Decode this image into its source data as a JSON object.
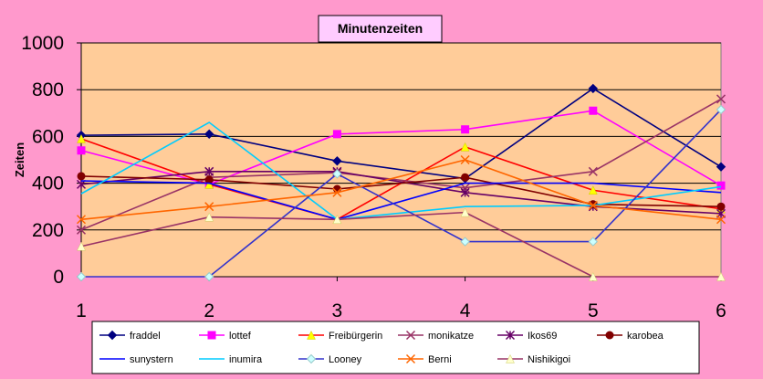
{
  "chart_data": {
    "type": "line",
    "title": "Minutenzeiten",
    "xlabel": "",
    "ylabel": "Zeiten",
    "x": [
      1,
      2,
      3,
      4,
      5,
      6
    ],
    "ylim": [
      0,
      1000
    ],
    "yticks": [
      0,
      200,
      400,
      600,
      800,
      1000
    ],
    "grid": "horizontal",
    "legend_position": "bottom",
    "colors": {
      "page_background": "#ff99cc",
      "plot_background": "#ffcc99",
      "title_background": "#ffccff"
    },
    "series": [
      {
        "name": "fraddel",
        "color": "#000080",
        "marker": "diamond",
        "values": [
          605,
          610,
          495,
          420,
          805,
          470
        ]
      },
      {
        "name": "lottef",
        "color": "#ff00ff",
        "marker": "square",
        "values": [
          540,
          395,
          610,
          630,
          710,
          390
        ]
      },
      {
        "name": "Freibürgerin",
        "color": "#ff0000",
        "marker": "triangle",
        "values": [
          590,
          395,
          245,
          555,
          370,
          290
        ]
      },
      {
        "name": "monikatze",
        "color": "#993366",
        "marker": "xstar",
        "values": [
          200,
          425,
          445,
          380,
          450,
          760
        ]
      },
      {
        "name": "Ikos69",
        "color": "#660066",
        "marker": "asterisk",
        "values": [
          395,
          450,
          450,
          360,
          300,
          270
        ]
      },
      {
        "name": "karobea",
        "color": "#800000",
        "marker": "circle",
        "values": [
          430,
          415,
          375,
          425,
          310,
          300
        ]
      },
      {
        "name": "sunystern",
        "color": "#0000ff",
        "marker": "none",
        "values": [
          410,
          400,
          245,
          400,
          400,
          360
        ]
      },
      {
        "name": "inumira",
        "color": "#00ccff",
        "marker": "none",
        "values": [
          355,
          660,
          245,
          300,
          305,
          385
        ]
      },
      {
        "name": "Looney",
        "color": "#3333cc",
        "marker": "diamond-light",
        "values": [
          0,
          0,
          440,
          150,
          150,
          715
        ]
      },
      {
        "name": "Berni",
        "color": "#ff6600",
        "marker": "xstar",
        "values": [
          245,
          300,
          360,
          500,
          305,
          245
        ]
      },
      {
        "name": "Nishikigoi",
        "color": "#993366",
        "marker": "triangle-light",
        "values": [
          130,
          255,
          245,
          275,
          0,
          0
        ]
      }
    ]
  }
}
